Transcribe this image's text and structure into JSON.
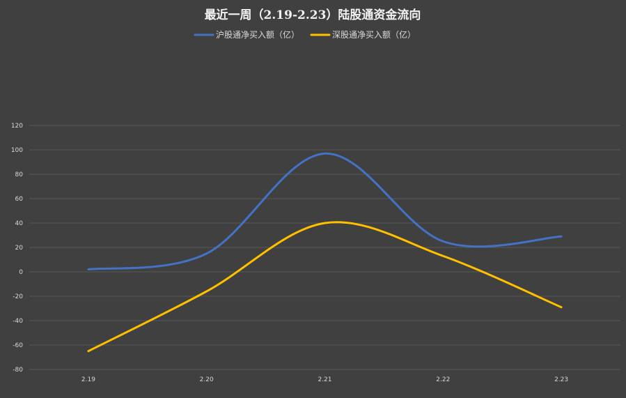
{
  "chart_data": {
    "type": "line",
    "title": "最近一周（2.19-2.23）陆股通资金流向",
    "categories": [
      "2.19",
      "2.20",
      "2.21",
      "2.22",
      "2.23"
    ],
    "series": [
      {
        "name": "沪股通净买入额（亿）",
        "color": "#4472c4",
        "values": [
          2,
          15,
          97,
          25,
          29
        ]
      },
      {
        "name": "深股通净买入额（亿）",
        "color": "#ffc000",
        "values": [
          -65,
          -16,
          40,
          13,
          -29
        ]
      }
    ],
    "y_ticks": [
      "120",
      "100",
      "80",
      "60",
      "40",
      "20",
      "0",
      "-20",
      "-40",
      "-60",
      "-80"
    ],
    "ylim": [
      -80,
      120
    ],
    "xlabel": "",
    "ylabel": "",
    "grid": true,
    "legend_position": "top",
    "smooth": true,
    "background": "#404040"
  }
}
